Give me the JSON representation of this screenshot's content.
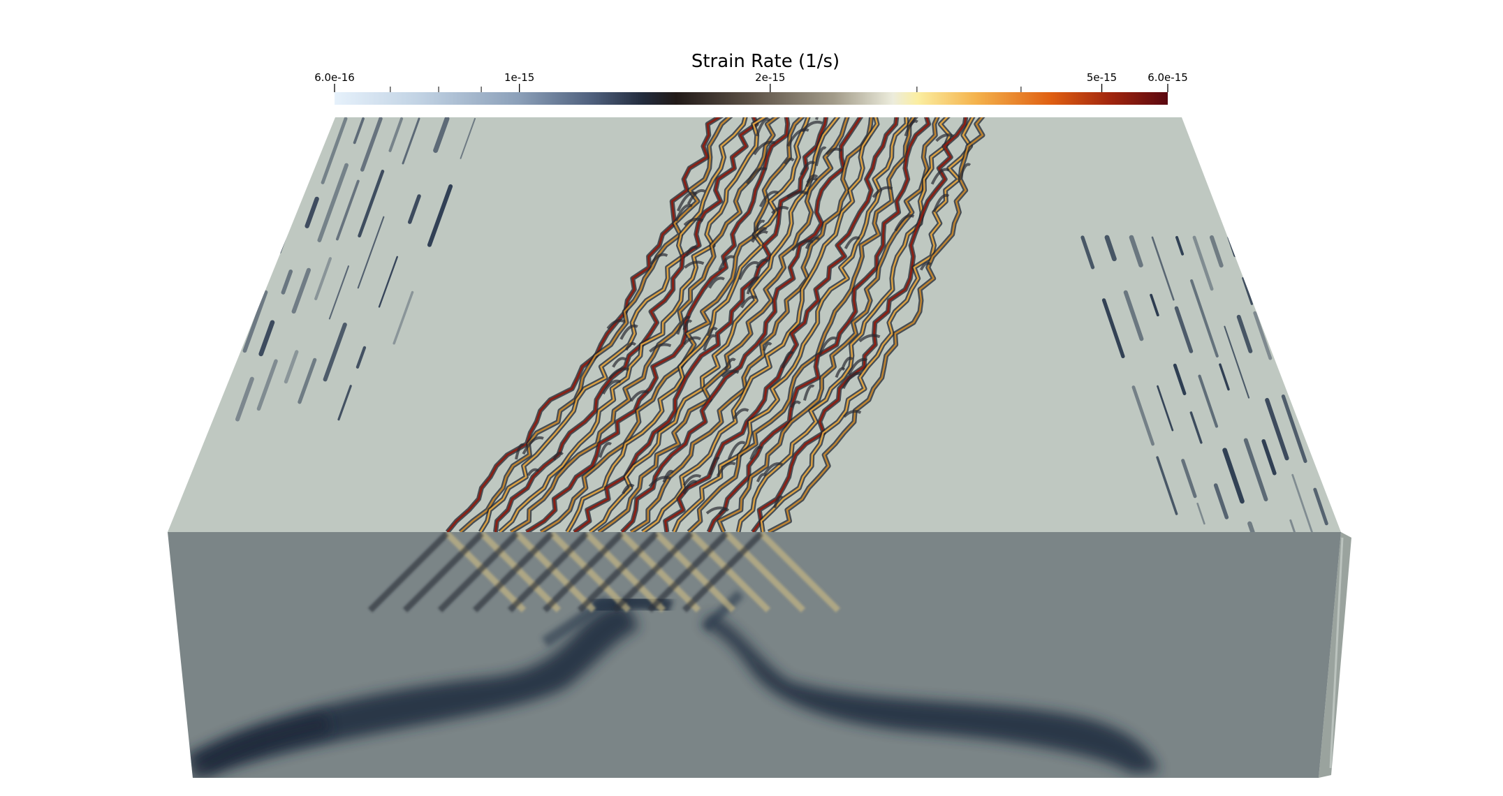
{
  "chart_data": {
    "type": "heatmap",
    "view": "3D block rendering",
    "title": "Strain Rate (1/s)",
    "scale": "log",
    "colormap": "cool-to-warm (white-blue-black-cream-orange-dark red)",
    "range": [
      6e-16,
      6e-15
    ],
    "major_ticks": [
      {
        "label": "6.0e-16",
        "value": 6e-16
      },
      {
        "label": "1e-15",
        "value": 1e-15
      },
      {
        "label": "2e-15",
        "value": 2e-15
      },
      {
        "label": "5e-15",
        "value": 5e-15
      },
      {
        "label": "6.0e-15",
        "value": 6e-15
      }
    ],
    "minor_ticks": [
      7e-16,
      8e-16,
      9e-16,
      3e-15,
      4e-15
    ],
    "colors": {
      "top_face": "#bfc8c1",
      "front_face": "#7b8587",
      "side_face": "#a8b1ab",
      "low": "#dcebf6",
      "high": "#5e0a14"
    }
  }
}
